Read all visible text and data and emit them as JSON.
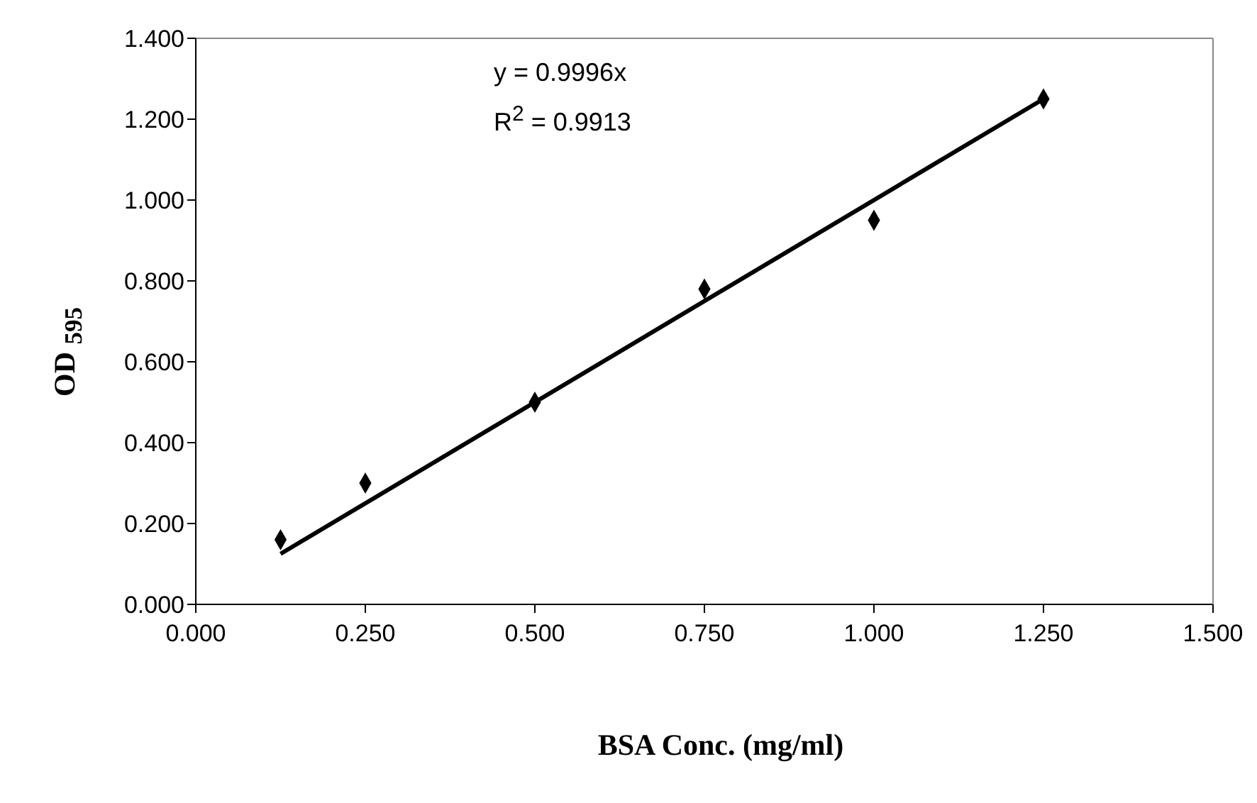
{
  "chart_data": {
    "type": "scatter",
    "xlabel": "BSA Conc. (mg/ml)",
    "ylabel": "OD $_{595}$",
    "annotations": [
      "y = 0.9996x",
      "R$^{2}$ = 0.9913"
    ],
    "xlim": [
      0,
      1.5
    ],
    "xticks": [
      {
        "value": 0,
        "label": "0.000"
      },
      {
        "value": 0.25,
        "label": "0.250"
      },
      {
        "value": 0.5,
        "label": "0.500"
      },
      {
        "value": 0.75,
        "label": "0.750"
      },
      {
        "value": 1,
        "label": "1.000"
      },
      {
        "value": 1.25,
        "label": "1.250"
      },
      {
        "value": 1.5,
        "label": "1.500"
      }
    ],
    "ylim": [
      0,
      1.4
    ],
    "yticks": [
      {
        "value": 0,
        "label": "0.000"
      },
      {
        "value": 0.2,
        "label": "0.200"
      },
      {
        "value": 0.4,
        "label": "0.400"
      },
      {
        "value": 0.6,
        "label": "0.600"
      },
      {
        "value": 0.8,
        "label": "0.800"
      },
      {
        "value": 1,
        "label": "1.000"
      },
      {
        "value": 1.2,
        "label": "1.200"
      },
      {
        "value": 1.4,
        "label": "1.400"
      }
    ],
    "series": [
      {
        "color": "#000000",
        "marker": "diamond",
        "x": [
          0.125,
          0.25,
          0.5,
          0.75,
          1,
          1.25
        ],
        "values": [
          0.16,
          0.3,
          0.5,
          0.78,
          0.95,
          1.25
        ]
      },
      {
        "type": "line",
        "color": "#000000",
        "marker": "none",
        "line_style": "solid",
        "x": [
          0.125,
          1.25
        ],
        "values": [
          0.125,
          1.25
        ]
      }
    ]
  }
}
